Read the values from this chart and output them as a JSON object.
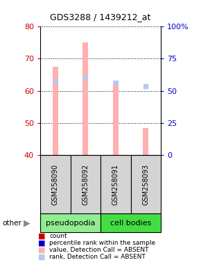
{
  "title": "GDS3288 / 1439212_at",
  "samples": [
    "GSM258090",
    "GSM258092",
    "GSM258091",
    "GSM258093"
  ],
  "bar_values": [
    67.5,
    75.0,
    63.0,
    48.5
  ],
  "rank_values": [
    63.0,
    64.0,
    62.5,
    61.5
  ],
  "bar_color_absent": "#ffb0b0",
  "rank_color_absent": "#b8c8f0",
  "ylim_left": [
    40,
    80
  ],
  "yticks_left": [
    40,
    50,
    60,
    70,
    80
  ],
  "yticks_right": [
    0,
    25,
    50,
    75,
    100
  ],
  "ytick_labels_right": [
    "0",
    "25",
    "50",
    "75",
    "100%"
  ],
  "left_tick_color": "#cc0000",
  "right_tick_color": "#0000cc",
  "legend_items": [
    {
      "label": "count",
      "color": "#cc0000"
    },
    {
      "label": "percentile rank within the sample",
      "color": "#0000cc"
    },
    {
      "label": "value, Detection Call = ABSENT",
      "color": "#ffb0b0"
    },
    {
      "label": "rank, Detection Call = ABSENT",
      "color": "#b8c8f0"
    }
  ],
  "bar_width": 0.18,
  "pseudopodia_color": "#90ee90",
  "cell_bodies_color": "#44dd44",
  "sample_label_bg": "#d4d4d4"
}
